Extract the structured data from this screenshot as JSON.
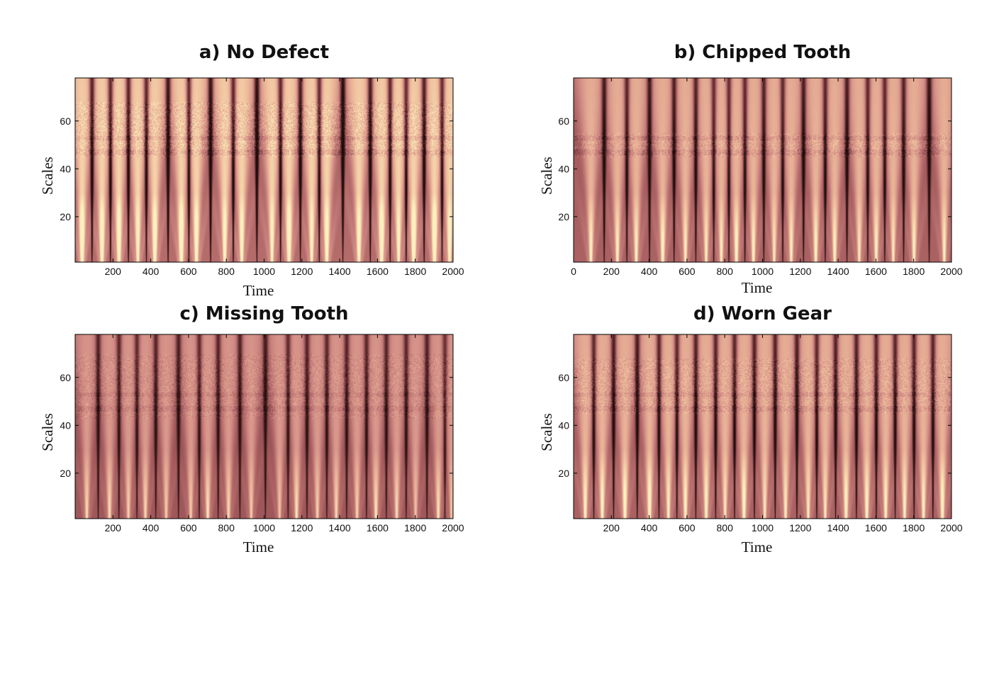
{
  "figure": {
    "background": "#ffffff",
    "colormap": [
      "#1e0c0c",
      "#5a2a2c",
      "#a35a5c",
      "#d08a84",
      "#eebb9a",
      "#fcf0c0"
    ]
  },
  "chart_data": [
    {
      "type": "heatmap",
      "id": "a",
      "title": "a) No Defect",
      "xlabel": "Time",
      "ylabel": "Scales",
      "xlim": [
        0,
        2000
      ],
      "ylim": [
        1,
        78
      ],
      "xticks": [
        200,
        400,
        600,
        800,
        1000,
        1200,
        1400,
        1600,
        1800,
        2000
      ],
      "yticks": [
        20,
        40,
        60
      ],
      "grid": false,
      "lobe_centers": [
        35,
        140,
        230,
        330,
        420,
        560,
        640,
        790,
        880,
        1040,
        1130,
        1250,
        1330,
        1500,
        1620,
        1710,
        1790,
        1900,
        1980
      ],
      "intensity": "high",
      "noise_band": [
        45,
        68
      ]
    },
    {
      "type": "heatmap",
      "id": "b",
      "title": "b) Chipped Tooth",
      "xlabel": "Time",
      "ylabel": "Scales",
      "xlim": [
        0,
        2000
      ],
      "ylim": [
        1,
        78
      ],
      "xticks": [
        0,
        200,
        400,
        600,
        800,
        1000,
        1200,
        1400,
        1600,
        1800,
        2000
      ],
      "yticks": [
        20,
        40,
        60
      ],
      "grid": false,
      "lobe_centers": [
        90,
        230,
        330,
        470,
        590,
        700,
        780,
        860,
        950,
        1060,
        1150,
        1280,
        1380,
        1510,
        1600,
        1690,
        1800,
        1960
      ],
      "intensity": "medium",
      "noise_band": [
        45,
        55
      ]
    },
    {
      "type": "heatmap",
      "id": "c",
      "title": "c) Missing Tooth",
      "xlabel": "Time",
      "ylabel": "Scales",
      "xlim": [
        0,
        2000
      ],
      "ylim": [
        1,
        78
      ],
      "xticks": [
        200,
        400,
        600,
        800,
        1000,
        1200,
        1400,
        1600,
        1800,
        2000
      ],
      "yticks": [
        20,
        40,
        60
      ],
      "grid": false,
      "lobe_centers": [
        60,
        180,
        280,
        370,
        480,
        610,
        700,
        810,
        930,
        1080,
        1170,
        1280,
        1380,
        1490,
        1590,
        1700,
        1800,
        1920,
        1990
      ],
      "intensity": "low",
      "noise_band": [
        43,
        70
      ]
    },
    {
      "type": "heatmap",
      "id": "d",
      "title": "d) Worn Gear",
      "xlabel": "Time",
      "ylabel": "Scales",
      "xlim": [
        0,
        2000
      ],
      "ylim": [
        1,
        78
      ],
      "xticks": [
        200,
        400,
        600,
        800,
        1000,
        1200,
        1400,
        1600,
        1800,
        2000
      ],
      "yticks": [
        20,
        40,
        60
      ],
      "grid": false,
      "lobe_centers": [
        60,
        150,
        270,
        400,
        500,
        590,
        700,
        800,
        900,
        1010,
        1120,
        1240,
        1330,
        1440,
        1550,
        1650,
        1750,
        1850,
        1950
      ],
      "intensity": "medium",
      "noise_band": [
        45,
        68
      ]
    }
  ]
}
